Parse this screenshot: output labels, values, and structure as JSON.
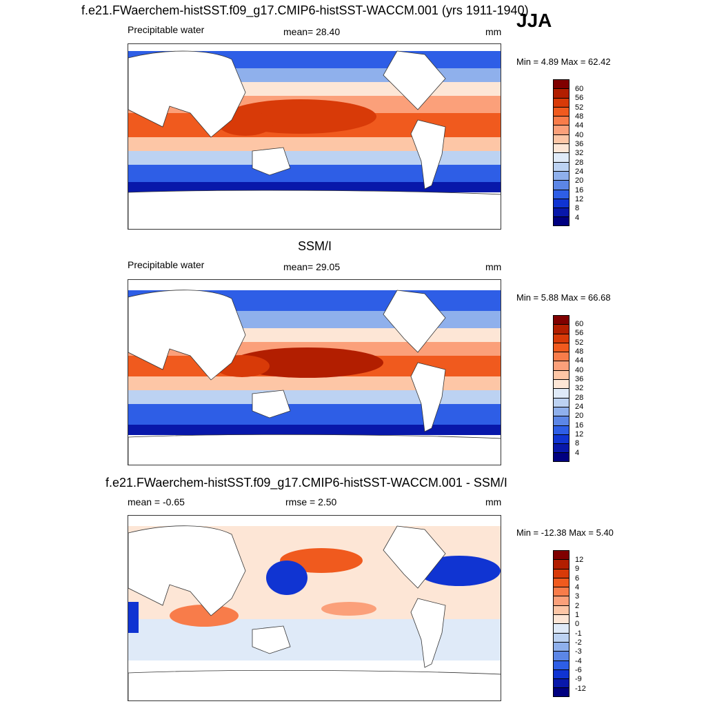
{
  "season": "JJA",
  "panels": [
    {
      "title": "f.e21.FWaerchem-histSST.f09_g17.CMIP6-histSST-WACCM.001 (yrs 1911-1940)",
      "left_label": "Precipitable water",
      "center_label": "mean=  28.40",
      "units": "mm",
      "minmax": "Min =   4.89 Max =  62.42",
      "colorbar_ticks": [
        "60",
        "56",
        "52",
        "48",
        "44",
        "40",
        "36",
        "32",
        "28",
        "24",
        "20",
        "16",
        "12",
        "8",
        "4"
      ],
      "colorbar_colors": [
        "#800000",
        "#b21e00",
        "#d83a08",
        "#f05a1e",
        "#f87c4a",
        "#fba07a",
        "#fdc6a6",
        "#fde6d6",
        "#dfeaf8",
        "#bcd2f2",
        "#8fb0ec",
        "#5c86e6",
        "#2e5ee6",
        "#1034d2",
        "#0818aa",
        "#000080"
      ]
    },
    {
      "title": "SSM/I",
      "left_label": "Precipitable water",
      "center_label": "mean=  29.05",
      "units": "mm",
      "minmax": "Min =   5.88 Max =  66.68",
      "colorbar_ticks": [
        "60",
        "56",
        "52",
        "48",
        "44",
        "40",
        "36",
        "32",
        "28",
        "24",
        "20",
        "16",
        "12",
        "8",
        "4"
      ],
      "colorbar_colors": [
        "#800000",
        "#b21e00",
        "#d83a08",
        "#f05a1e",
        "#f87c4a",
        "#fba07a",
        "#fdc6a6",
        "#fde6d6",
        "#dfeaf8",
        "#bcd2f2",
        "#8fb0ec",
        "#5c86e6",
        "#2e5ee6",
        "#1034d2",
        "#0818aa",
        "#000080"
      ]
    },
    {
      "title": "f.e21.FWaerchem-histSST.f09_g17.CMIP6-histSST-WACCM.001 - SSM/I",
      "left_label": "mean =  -0.65",
      "center_label": "rmse =   2.50",
      "units": "mm",
      "minmax": "Min = -12.38 Max =   5.40",
      "colorbar_ticks": [
        "12",
        "9",
        "6",
        "4",
        "3",
        "2",
        "1",
        "0",
        "-1",
        "-2",
        "-3",
        "-4",
        "-6",
        "-9",
        "-12"
      ],
      "colorbar_colors": [
        "#800000",
        "#b21e00",
        "#d83a08",
        "#f05a1e",
        "#f87c4a",
        "#fba07a",
        "#fdc6a6",
        "#fde6d6",
        "#dfeaf8",
        "#bcd2f2",
        "#8fb0ec",
        "#5c86e6",
        "#2e5ee6",
        "#1034d2",
        "#0818aa",
        "#000080"
      ]
    }
  ]
}
